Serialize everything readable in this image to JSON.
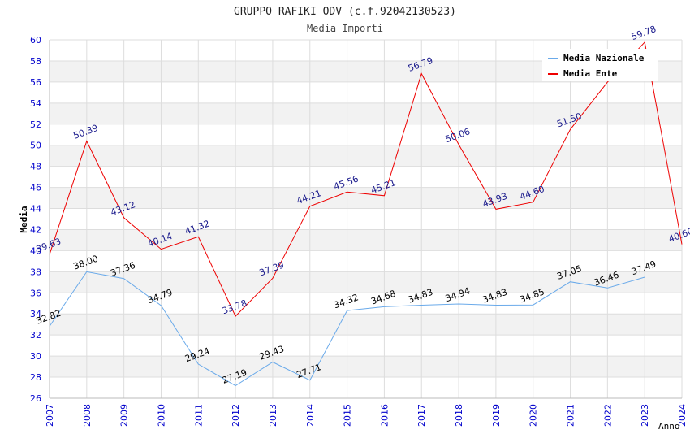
{
  "chart_data": {
    "type": "line",
    "title": "GRUPPO RAFIKI ODV (c.f.92042130523)",
    "subtitle": "Media Importi",
    "xlabel": "Anno",
    "ylabel": "Media",
    "ylim": [
      26,
      60
    ],
    "yticks": [
      26,
      28,
      30,
      32,
      34,
      36,
      38,
      40,
      42,
      44,
      46,
      48,
      50,
      52,
      54,
      56,
      58,
      60
    ],
    "x": [
      2007,
      2008,
      2009,
      2010,
      2011,
      2012,
      2013,
      2014,
      2015,
      2016,
      2017,
      2018,
      2019,
      2020,
      2021,
      2022,
      2023,
      2024
    ],
    "grid": true,
    "legend_position": "top-right",
    "series": [
      {
        "name": "Media Nazionale",
        "color": "#6aaaea",
        "label_color": "#000000",
        "values": [
          32.82,
          38.0,
          37.36,
          34.79,
          29.24,
          27.19,
          29.43,
          27.71,
          34.32,
          34.68,
          34.83,
          34.94,
          34.83,
          34.85,
          37.05,
          36.46,
          37.49,
          null
        ],
        "labels": [
          "32.82",
          "38.00",
          "37.36",
          "34.79",
          "29.24",
          "27.19",
          "29.43",
          "27.71",
          "34.32",
          "34.68",
          "34.83",
          "34.94",
          "34.83",
          "34.85",
          "37.05",
          "36.46",
          "37.49",
          ""
        ]
      },
      {
        "name": "Media Ente",
        "color": "#ee0000",
        "label_color": "#1a1a8c",
        "values": [
          39.63,
          50.39,
          43.12,
          40.14,
          41.32,
          33.78,
          37.39,
          44.21,
          45.56,
          45.21,
          56.79,
          50.06,
          43.93,
          44.6,
          51.5,
          56.0,
          59.78,
          40.6
        ],
        "labels": [
          "39.63",
          "50.39",
          "43.12",
          "40.14",
          "41.32",
          "33.78",
          "37.39",
          "44.21",
          "45.56",
          "45.21",
          "56.79",
          "50.06",
          "43.93",
          "44.60",
          "51.50",
          "",
          "59.78",
          "40.60"
        ]
      }
    ],
    "colors": {
      "axis_tick_text": "#0000cc",
      "band_fill": "#f2f2f2",
      "grid_line": "#dddddd"
    }
  }
}
